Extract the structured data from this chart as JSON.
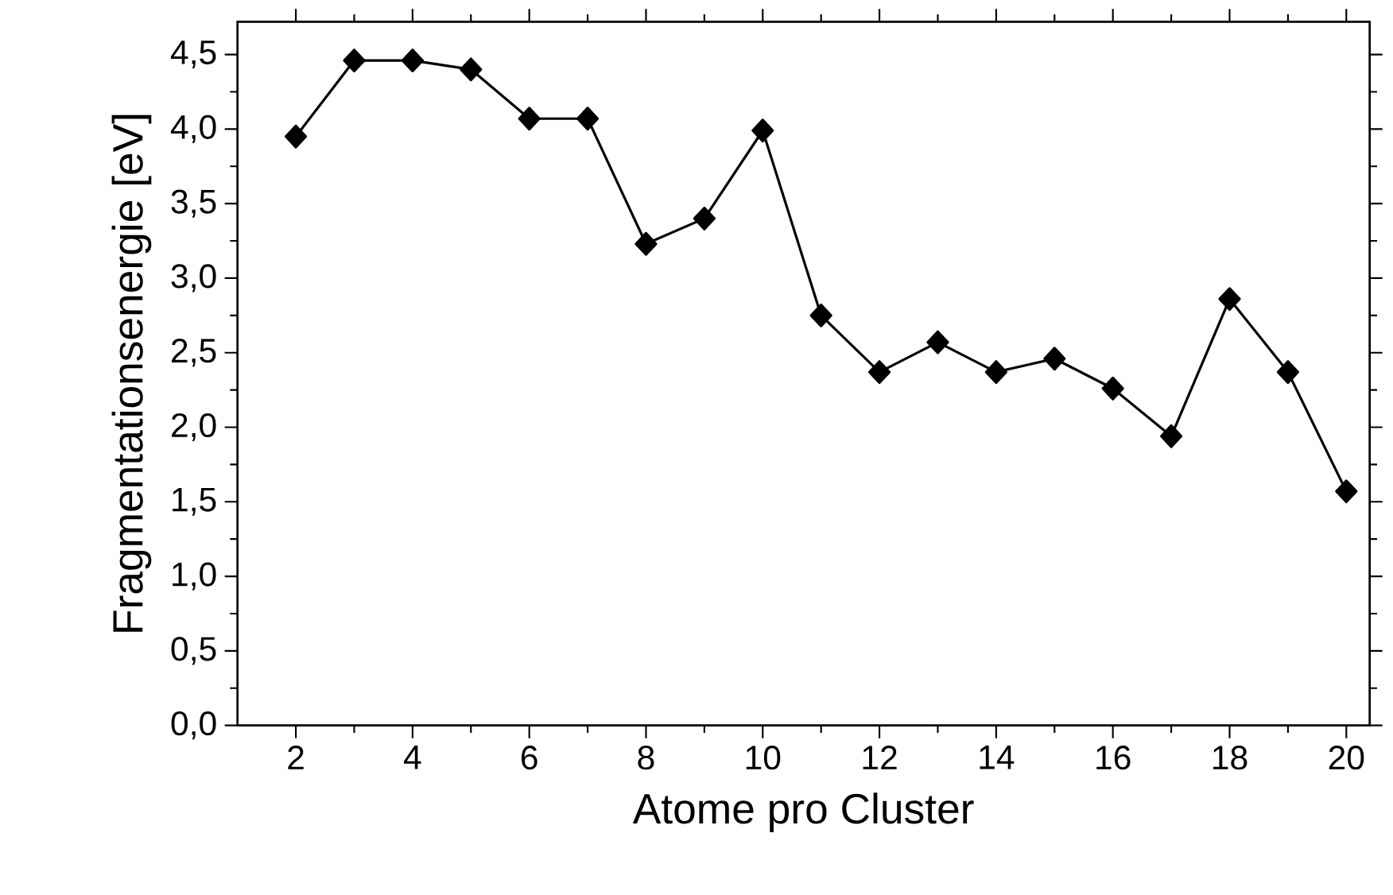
{
  "chart_data": {
    "type": "line",
    "xlabel": "Atome pro Cluster",
    "ylabel": "Fragmentationsenergie [eV]",
    "x": [
      2,
      3,
      4,
      5,
      6,
      7,
      8,
      9,
      10,
      11,
      12,
      13,
      14,
      15,
      16,
      17,
      18,
      19,
      20
    ],
    "series": [
      {
        "color": "#000000",
        "values": [
          3.95,
          4.46,
          4.46,
          4.4,
          4.07,
          4.07,
          3.23,
          3.4,
          3.99,
          2.75,
          2.37,
          2.57,
          2.37,
          2.46,
          2.26,
          1.94,
          2.86,
          2.37,
          1.57
        ]
      }
    ],
    "xlim": [
      1,
      20.4
    ],
    "ylim": [
      0,
      4.72
    ],
    "xticks": [
      2,
      4,
      6,
      8,
      10,
      12,
      14,
      16,
      18,
      20
    ],
    "yticks": [
      {
        "value": 0,
        "label": "0,0"
      },
      {
        "value": 0.5,
        "label": "0,5"
      },
      {
        "value": 1,
        "label": "1,0"
      },
      {
        "value": 1.5,
        "label": "1,5"
      },
      {
        "value": 2,
        "label": "2,0"
      },
      {
        "value": 2.5,
        "label": "2,5"
      },
      {
        "value": 3,
        "label": "3,0"
      },
      {
        "value": 3.5,
        "label": "3,5"
      },
      {
        "value": 4,
        "label": "4,0"
      },
      {
        "value": 4.5,
        "label": "4,5"
      }
    ],
    "grid": false,
    "marker": "diamond",
    "line_style": "solid"
  }
}
